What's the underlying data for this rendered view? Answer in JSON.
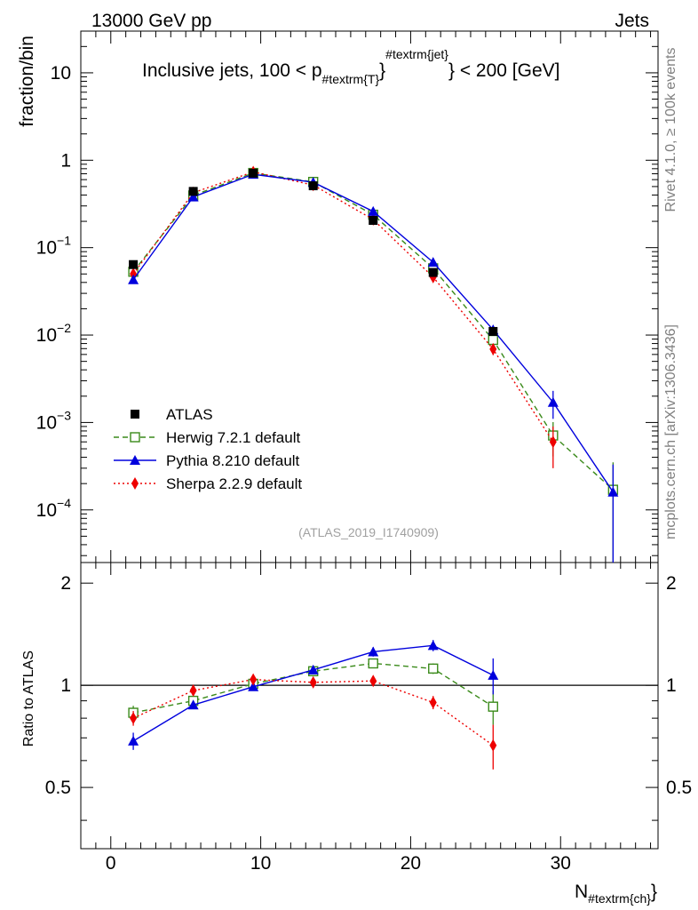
{
  "header": {
    "energy_label": "13000 GeV pp",
    "category_label": "Jets"
  },
  "side_labels": {
    "rivet": "Rivet 4.1.0, ≥ 100k events",
    "mcplots": "mcplots.cern.ch [arXiv:1306.3436]"
  },
  "colors": {
    "data": "#000000",
    "herwig": "#3a8a1a",
    "pythia": "#0000dd",
    "sherpa": "#ee0000"
  },
  "chart_data": {
    "type": "line",
    "title": "Inclusive jets, 100 < p",
    "title_sub": "#textrm{T}",
    "title_sup": "#textrm{jet}",
    "title_suffix": "} < 200 [GeV]",
    "analysis_label": "(ATLAS_2019_I1740909)",
    "xlabel": "N",
    "xlabel_sub": "#textrm{ch}",
    "xlabel_suffix": "}",
    "xlim": [
      -2,
      36.5
    ],
    "x_ticks": [
      "0",
      "10",
      "20",
      "30"
    ],
    "x_tick_values": [
      0,
      10,
      20,
      30
    ],
    "main": {
      "ylabel": "fraction/bin",
      "yscale": "log",
      "ylim": [
        2.5e-05,
        30
      ],
      "y_ticks": [
        {
          "value": 10,
          "base": "10",
          "exp": ""
        },
        {
          "value": 1,
          "base": "1",
          "exp": ""
        },
        {
          "value": 0.1,
          "base": "10",
          "exp": "−1"
        },
        {
          "value": 0.01,
          "base": "10",
          "exp": "−2"
        },
        {
          "value": 0.001,
          "base": "10",
          "exp": "−3"
        },
        {
          "value": 0.0001,
          "base": "10",
          "exp": "−4"
        }
      ],
      "series": [
        {
          "key": "data",
          "name": "ATLAS",
          "marker": "square",
          "line": "none",
          "x": [
            1.5,
            5.5,
            9.5,
            13.5,
            17.5,
            21.5,
            25.5
          ],
          "y": [
            0.064,
            0.44,
            0.71,
            0.51,
            0.205,
            0.052,
            0.011
          ]
        },
        {
          "key": "herwig",
          "name": "Herwig 7.2.1 default",
          "marker": "open-square",
          "line": "dashed",
          "x": [
            1.5,
            5.5,
            9.5,
            13.5,
            17.5,
            21.5,
            25.5,
            29.5,
            33.5
          ],
          "y": [
            0.053,
            0.395,
            0.715,
            0.565,
            0.238,
            0.058,
            0.0088,
            0.00071,
            0.00017
          ],
          "err": [
            0.004,
            0.02,
            0.02,
            0.02,
            0.01,
            0.004,
            0.0012,
            0.0003,
            0.00018
          ]
        },
        {
          "key": "pythia",
          "name": "Pythia 8.210 default",
          "marker": "triangle",
          "line": "solid",
          "x": [
            1.5,
            5.5,
            9.5,
            13.5,
            17.5,
            21.5,
            25.5,
            29.5,
            33.5
          ],
          "y": [
            0.043,
            0.38,
            0.69,
            0.56,
            0.26,
            0.068,
            0.0115,
            0.0017,
            0.00016
          ],
          "err": [
            0.004,
            0.02,
            0.02,
            0.02,
            0.01,
            0.004,
            0.0015,
            0.0006,
            0.00017
          ]
        },
        {
          "key": "sherpa",
          "name": "Sherpa 2.2.9 default",
          "marker": "diamond",
          "line": "dotted",
          "x": [
            1.5,
            5.5,
            9.5,
            13.5,
            17.5,
            21.5,
            25.5,
            29.5
          ],
          "y": [
            0.05,
            0.425,
            0.735,
            0.52,
            0.21,
            0.046,
            0.0069,
            0.0006
          ],
          "err": [
            0.004,
            0.02,
            0.02,
            0.02,
            0.01,
            0.003,
            0.001,
            0.0003
          ]
        }
      ]
    },
    "ratio": {
      "ylabel": "Ratio to ATLAS",
      "ylim": [
        0.33,
        2.3
      ],
      "y_ticks": [
        "0.5",
        "1",
        "2"
      ],
      "y_tick_values": [
        0.5,
        1,
        2
      ],
      "series": [
        {
          "key": "herwig",
          "x": [
            1.5,
            5.5,
            9.5,
            13.5,
            17.5,
            21.5,
            25.5
          ],
          "y": [
            0.83,
            0.9,
            1.01,
            1.1,
            1.16,
            1.12,
            0.865
          ],
          "err": [
            0.04,
            0.02,
            0.02,
            0.02,
            0.03,
            0.04,
            0.1
          ]
        },
        {
          "key": "pythia",
          "x": [
            1.5,
            5.5,
            9.5,
            13.5,
            17.5,
            21.5,
            25.5
          ],
          "y": [
            0.685,
            0.875,
            0.99,
            1.11,
            1.255,
            1.31,
            1.07
          ],
          "err": [
            0.04,
            0.02,
            0.02,
            0.02,
            0.04,
            0.05,
            0.13
          ]
        },
        {
          "key": "sherpa",
          "x": [
            1.5,
            5.5,
            9.5,
            13.5,
            17.5,
            21.5,
            25.5
          ],
          "y": [
            0.8,
            0.965,
            1.04,
            1.02,
            1.03,
            0.89,
            0.665
          ],
          "err": [
            0.04,
            0.02,
            0.02,
            0.02,
            0.02,
            0.04,
            0.1
          ]
        }
      ]
    }
  }
}
